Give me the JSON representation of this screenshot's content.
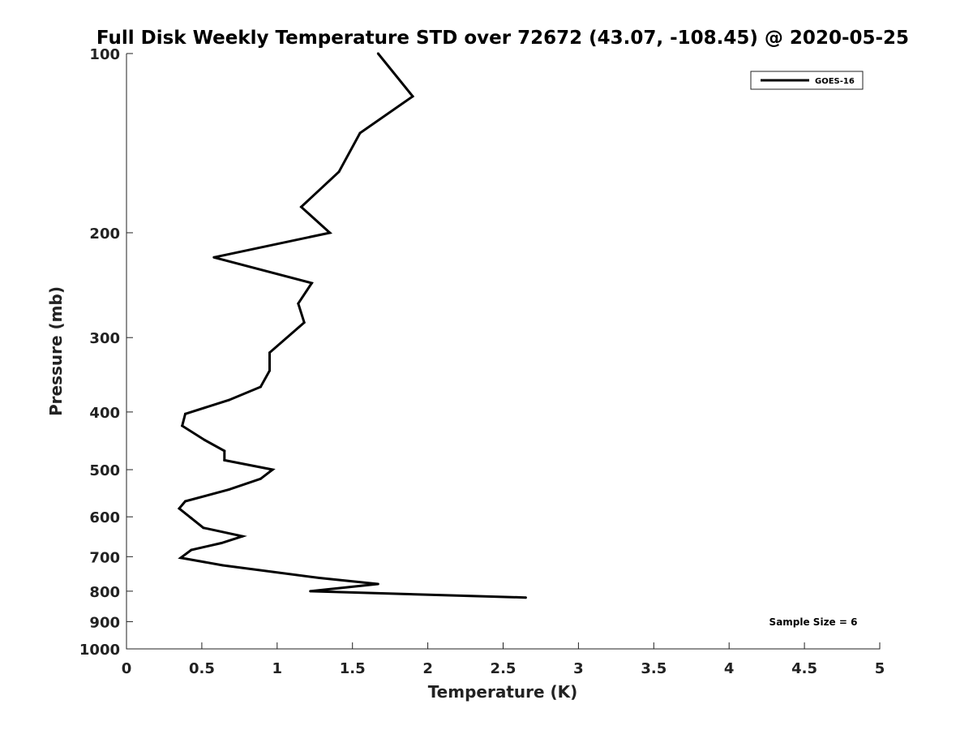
{
  "chart_data": {
    "type": "line",
    "title": "Full Disk Weekly Temperature STD over 72672 (43.07, -108.45) @ 2020-05-25",
    "xlabel": "Temperature (K)",
    "ylabel": "Pressure (mb)",
    "xlim": [
      0,
      5
    ],
    "ylim": [
      100,
      1000
    ],
    "y_scale": "log",
    "y_reversed": true,
    "grid": false,
    "legend_position": "top-right",
    "x_ticks": [
      0,
      0.5,
      1,
      1.5,
      2,
      2.5,
      3,
      3.5,
      4,
      4.5,
      5
    ],
    "x_tick_labels": [
      "0",
      "0.5",
      "1",
      "1.5",
      "2",
      "2.5",
      "3",
      "3.5",
      "4",
      "4.5",
      "5"
    ],
    "y_ticks": [
      100,
      200,
      300,
      400,
      500,
      600,
      700,
      800,
      900,
      1000
    ],
    "y_tick_labels": [
      "100",
      "200",
      "300",
      "400",
      "500",
      "600",
      "700",
      "800",
      "900",
      "1000"
    ],
    "series": [
      {
        "name": "GOES-16",
        "color": "#000000",
        "points": [
          {
            "x": 1.67,
            "p": 100
          },
          {
            "x": 1.9,
            "p": 118
          },
          {
            "x": 1.55,
            "p": 136
          },
          {
            "x": 1.41,
            "p": 158
          },
          {
            "x": 1.16,
            "p": 181
          },
          {
            "x": 1.35,
            "p": 200
          },
          {
            "x": 0.58,
            "p": 220
          },
          {
            "x": 1.23,
            "p": 243
          },
          {
            "x": 1.14,
            "p": 263
          },
          {
            "x": 1.18,
            "p": 283
          },
          {
            "x": 0.95,
            "p": 318
          },
          {
            "x": 0.95,
            "p": 341
          },
          {
            "x": 0.89,
            "p": 363
          },
          {
            "x": 0.68,
            "p": 382
          },
          {
            "x": 0.39,
            "p": 403
          },
          {
            "x": 0.37,
            "p": 422
          },
          {
            "x": 0.52,
            "p": 446
          },
          {
            "x": 0.65,
            "p": 465
          },
          {
            "x": 0.65,
            "p": 482
          },
          {
            "x": 0.97,
            "p": 500
          },
          {
            "x": 0.89,
            "p": 518
          },
          {
            "x": 0.68,
            "p": 540
          },
          {
            "x": 0.39,
            "p": 565
          },
          {
            "x": 0.35,
            "p": 581
          },
          {
            "x": 0.43,
            "p": 603
          },
          {
            "x": 0.51,
            "p": 626
          },
          {
            "x": 0.77,
            "p": 647
          },
          {
            "x": 0.63,
            "p": 664
          },
          {
            "x": 0.43,
            "p": 682
          },
          {
            "x": 0.36,
            "p": 703
          },
          {
            "x": 0.64,
            "p": 724
          },
          {
            "x": 1.28,
            "p": 760
          },
          {
            "x": 1.67,
            "p": 778
          },
          {
            "x": 1.22,
            "p": 800
          },
          {
            "x": 2.65,
            "p": 820
          }
        ]
      }
    ],
    "annotation": "Sample Size = 6"
  }
}
